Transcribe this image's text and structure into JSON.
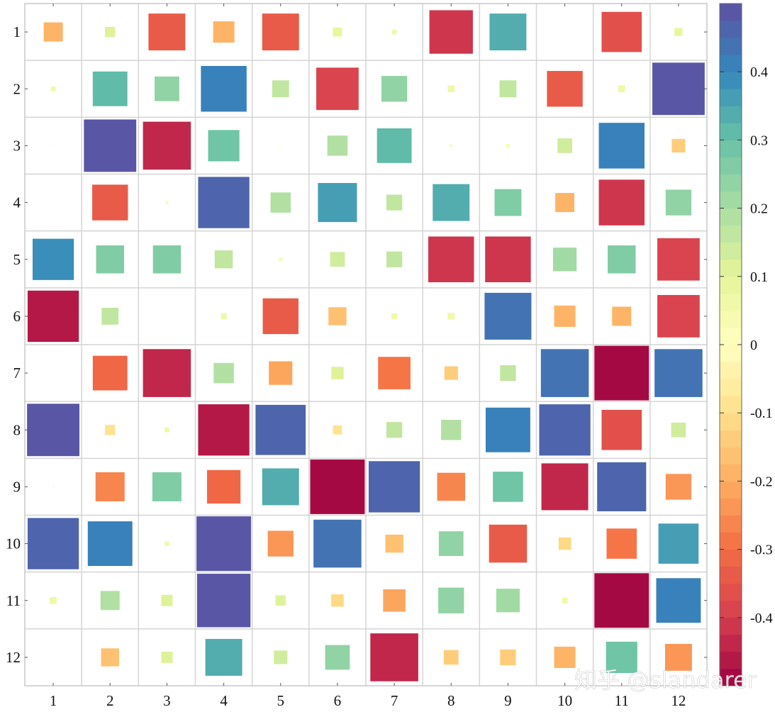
{
  "watermark": "知乎 @slandarer",
  "chart_data": {
    "type": "heatmap",
    "title": "",
    "xlabel": "",
    "ylabel": "",
    "x_categories": [
      "1",
      "2",
      "3",
      "4",
      "5",
      "6",
      "7",
      "8",
      "9",
      "10",
      "11",
      "12"
    ],
    "y_categories": [
      "1",
      "2",
      "3",
      "4",
      "5",
      "6",
      "7",
      "8",
      "9",
      "10",
      "11",
      "12"
    ],
    "encoding": "square size proportional to |value|, color by value",
    "values": [
      [
        -0.18,
        0.1,
        -0.34,
        -0.2,
        -0.34,
        0.09,
        0.05,
        -0.4,
        0.34,
        0.0,
        -0.37,
        0.08
      ],
      [
        0.05,
        0.32,
        0.23,
        0.42,
        0.16,
        -0.39,
        0.24,
        0.07,
        0.16,
        -0.33,
        0.07,
        0.48
      ],
      [
        0.02,
        0.48,
        -0.44,
        0.29,
        0.02,
        0.19,
        0.32,
        0.03,
        0.04,
        0.14,
        0.42,
        -0.13
      ],
      [
        0.0,
        -0.33,
        0.03,
        0.47,
        0.19,
        0.36,
        0.15,
        0.34,
        0.25,
        -0.18,
        -0.42,
        0.24
      ],
      [
        0.38,
        0.26,
        0.26,
        0.17,
        0.04,
        0.14,
        0.15,
        -0.42,
        -0.42,
        0.22,
        0.26,
        -0.39
      ],
      [
        -0.47,
        0.16,
        0.0,
        0.06,
        -0.33,
        -0.17,
        0.06,
        0.07,
        0.43,
        -0.2,
        -0.18,
        -0.39
      ],
      [
        0.0,
        -0.32,
        -0.44,
        0.19,
        -0.22,
        0.12,
        -0.3,
        -0.13,
        0.15,
        0.44,
        -0.5,
        0.44
      ],
      [
        0.48,
        -0.1,
        0.05,
        -0.47,
        0.46,
        -0.09,
        0.15,
        0.19,
        0.41,
        0.47,
        -0.37,
        0.14
      ],
      [
        0.02,
        -0.27,
        0.27,
        -0.31,
        0.34,
        -0.5,
        0.47,
        -0.26,
        0.28,
        -0.43,
        0.45,
        -0.24
      ],
      [
        0.47,
        0.41,
        0.05,
        0.5,
        -0.24,
        0.44,
        -0.17,
        0.23,
        -0.35,
        -0.12,
        -0.28,
        0.37
      ],
      [
        0.07,
        0.18,
        0.11,
        0.49,
        0.1,
        -0.12,
        -0.21,
        0.24,
        0.22,
        0.06,
        -0.5,
        0.41
      ],
      [
        0.0,
        -0.17,
        0.11,
        0.34,
        0.13,
        0.23,
        -0.44,
        -0.14,
        -0.15,
        -0.2,
        0.29,
        -0.25
      ]
    ],
    "colorbar": {
      "ticks": [
        "0.4",
        "0.3",
        "0.2",
        "0.1",
        "0",
        "-0.1",
        "-0.2",
        "-0.3",
        "-0.4"
      ],
      "tick_values": [
        0.4,
        0.3,
        0.2,
        0.1,
        0,
        -0.1,
        -0.2,
        -0.3,
        -0.4
      ],
      "range": [
        -0.5,
        0.5
      ],
      "levels": 40,
      "colormap": "Spectral",
      "colormap_stops": [
        "#9e0142",
        "#d53e4f",
        "#f46d43",
        "#fdae61",
        "#fee08b",
        "#ffffbf",
        "#e6f598",
        "#abdda4",
        "#66c2a5",
        "#3288bd",
        "#5e4fa2"
      ]
    },
    "grid": true,
    "legend": "colorbar-right"
  }
}
